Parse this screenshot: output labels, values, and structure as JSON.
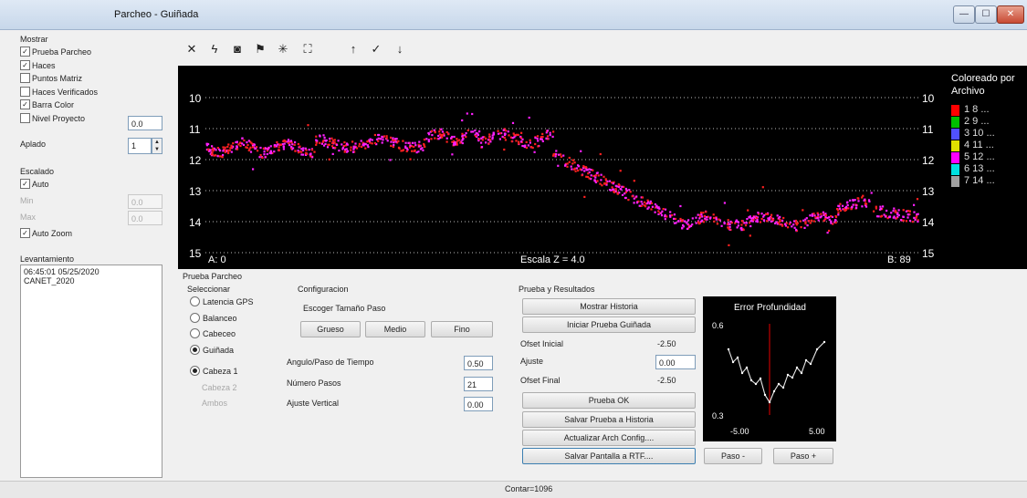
{
  "window": {
    "title": "Parcheo - Guiñada",
    "btn_min": "—",
    "btn_max": "☐",
    "btn_close": "✕"
  },
  "toolbar": {
    "icons": [
      "close-tool-icon",
      "flash-icon",
      "camera-icon",
      "flag-icon",
      "sun-icon",
      "fit-view-icon",
      "arrow-up-icon",
      "check-icon",
      "arrow-down-icon"
    ],
    "glyphs": [
      "✕",
      "ϟ",
      "◙",
      "⚑",
      "✳",
      "⛶",
      "↑",
      "✓",
      "↓"
    ]
  },
  "left": {
    "show_label": "Mostrar",
    "options": [
      {
        "label": "Prueba Parcheo",
        "checked": true
      },
      {
        "label": "Haces",
        "checked": true
      },
      {
        "label": "Puntos Matriz",
        "checked": false
      },
      {
        "label": "Haces Verificados",
        "checked": false
      },
      {
        "label": "Barra Color",
        "checked": true
      },
      {
        "label": "Nivel Proyecto",
        "checked": false
      }
    ],
    "nivel_value": "0.0",
    "aplado_label": "Aplado",
    "aplado_value": "1",
    "escalado_label": "Escalado",
    "auto_label": "Auto",
    "min_label": "Min",
    "max_label": "Max",
    "min_value": "0.0",
    "max_value": "0.0",
    "auto_zoom_label": "Auto Zoom",
    "survey_label": "Levantamiento",
    "survey_line1": "06:45:01 05/25/2020",
    "survey_line2": "CANET_2020"
  },
  "plot": {
    "y_ticks": [
      "10",
      "11",
      "12",
      "13",
      "14",
      "15"
    ],
    "left_label": "A: 0",
    "center_label": "Escala Z = 4.0",
    "right_label": "B: 89"
  },
  "legend": {
    "title1": "Coloreado por",
    "title2": "Archivo",
    "items": [
      {
        "label": "1  8  ...",
        "color": "#ff0000"
      },
      {
        "label": "2  9  ...",
        "color": "#00c000"
      },
      {
        "label": "3  10  ...",
        "color": "#5050ff"
      },
      {
        "label": "4  11  ...",
        "color": "#e0e000"
      },
      {
        "label": "5  12  ...",
        "color": "#ff00ff"
      },
      {
        "label": "6  13  ...",
        "color": "#00e0e0"
      },
      {
        "label": "7  14  ...",
        "color": "#a0a0a0"
      }
    ]
  },
  "patch": {
    "group_label": "Prueba Parcheo",
    "select_label": "Seleccionar",
    "radios": [
      {
        "label": "Latencia GPS",
        "selected": false
      },
      {
        "label": "Balanceo",
        "selected": false
      },
      {
        "label": "Cabeceo",
        "selected": false
      },
      {
        "label": "Guiñada",
        "selected": true
      }
    ],
    "heads": [
      {
        "label": "Cabeza 1",
        "selected": true,
        "disabled": false
      },
      {
        "label": "Cabeza 2",
        "selected": false,
        "disabled": true
      },
      {
        "label": "Ambos",
        "selected": false,
        "disabled": true
      }
    ]
  },
  "config": {
    "label": "Configuracion",
    "step_size_label": "Escoger Tamaño Paso",
    "btn_coarse": "Grueso",
    "btn_medium": "Medio",
    "btn_fine": "Fino",
    "angle_label": "Angulo/Paso de Tiempo",
    "angle_value": "0.50",
    "steps_label": "Número Pasos",
    "steps_value": "21",
    "vertical_label": "Ajuste Vertical",
    "vertical_value": "0.00"
  },
  "results": {
    "label": "Prueba y Resultados",
    "btn_history": "Mostrar Historia",
    "btn_start": "Iniciar Prueba Guiñada",
    "initial_offset_label": "Ofset Inicial",
    "initial_offset_value": "-2.50",
    "adjust_label": "Ajuste",
    "adjust_value": "0.00",
    "final_offset_label": "Ofset Final",
    "final_offset_value": "-2.50",
    "btn_ok": "Prueba OK",
    "btn_save_history": "Salvar Prueba a Historia",
    "btn_update_config": "Actualizar Arch Config....",
    "btn_save_rtf": "Salvar Pantalla a RTF...."
  },
  "error_chart": {
    "title": "Error Profundidad",
    "y_top": "0.6",
    "y_bottom": "0.3",
    "x_left": "-5.00",
    "x_right": "5.00",
    "btn_step_minus": "Paso -",
    "btn_step_plus": "Paso +"
  },
  "status": {
    "count": "Contar=1096"
  },
  "colors": {
    "marker_a": "#ff2020",
    "marker_b": "#ff20ff",
    "grid": "#bbbbbb"
  }
}
